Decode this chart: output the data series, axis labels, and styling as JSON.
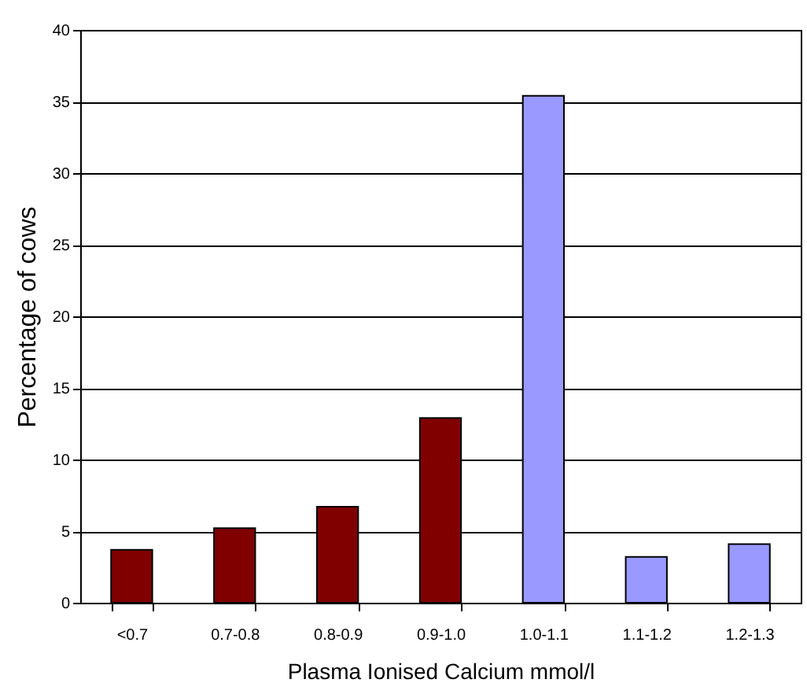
{
  "chart_data": {
    "type": "bar",
    "xlabel": "Plasma Ionised Calcium mmol/l",
    "ylabel": "Percentage of cows",
    "categories": [
      "<0.7",
      "0.7-0.8",
      "0.8-0.9",
      "0.9-1.0",
      "1.0-1.1",
      "1.1-1.2",
      "1.2-1.3"
    ],
    "values": [
      3.7,
      5.2,
      6.7,
      12.9,
      35.4,
      3.2,
      4.1
    ],
    "colors": [
      "#800000",
      "#800000",
      "#800000",
      "#800000",
      "#9999ff",
      "#9999ff",
      "#9999ff"
    ],
    "ylim": [
      0,
      40
    ],
    "yticks": [
      0,
      5,
      10,
      15,
      20,
      25,
      30,
      35,
      40
    ],
    "grid": "y"
  }
}
